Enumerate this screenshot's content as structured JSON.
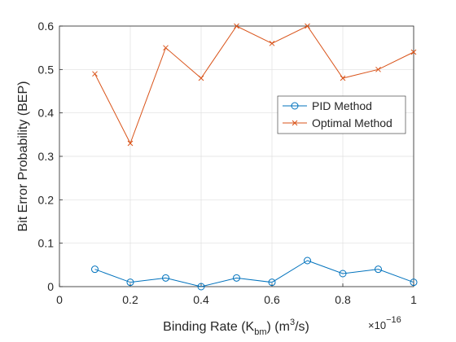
{
  "chart_data": {
    "type": "line",
    "x": [
      0.1,
      0.2,
      0.3,
      0.4,
      0.5,
      0.6,
      0.7,
      0.8,
      0.9,
      1.0
    ],
    "series": [
      {
        "name": "PID Method",
        "values": [
          0.04,
          0.01,
          0.02,
          0.0,
          0.02,
          0.01,
          0.06,
          0.03,
          0.04,
          0.01
        ],
        "color": "#0072BD",
        "marker": "circle"
      },
      {
        "name": "Optimal Method",
        "values": [
          0.49,
          0.33,
          0.55,
          0.48,
          0.6,
          0.56,
          0.6,
          0.48,
          0.5,
          0.54
        ],
        "color": "#D95319",
        "marker": "x"
      }
    ],
    "xlim": [
      0,
      1
    ],
    "ylim": [
      0,
      0.6
    ],
    "xticks": [
      "0",
      "0.2",
      "0.4",
      "0.6",
      "0.8",
      "1"
    ],
    "yticks": [
      "0",
      "0.1",
      "0.2",
      "0.3",
      "0.4",
      "0.5",
      "0.6"
    ],
    "xlabel": {
      "main": "Binding Rate (K",
      "sub": "bm",
      "mid": ") (m",
      "sup": "3",
      "tail": "/s)"
    },
    "ylabel": "Bit Error Probability (BEP)",
    "x_exponent": {
      "base": "×10",
      "power": "−16"
    },
    "grid": true,
    "legend_position": "right"
  }
}
